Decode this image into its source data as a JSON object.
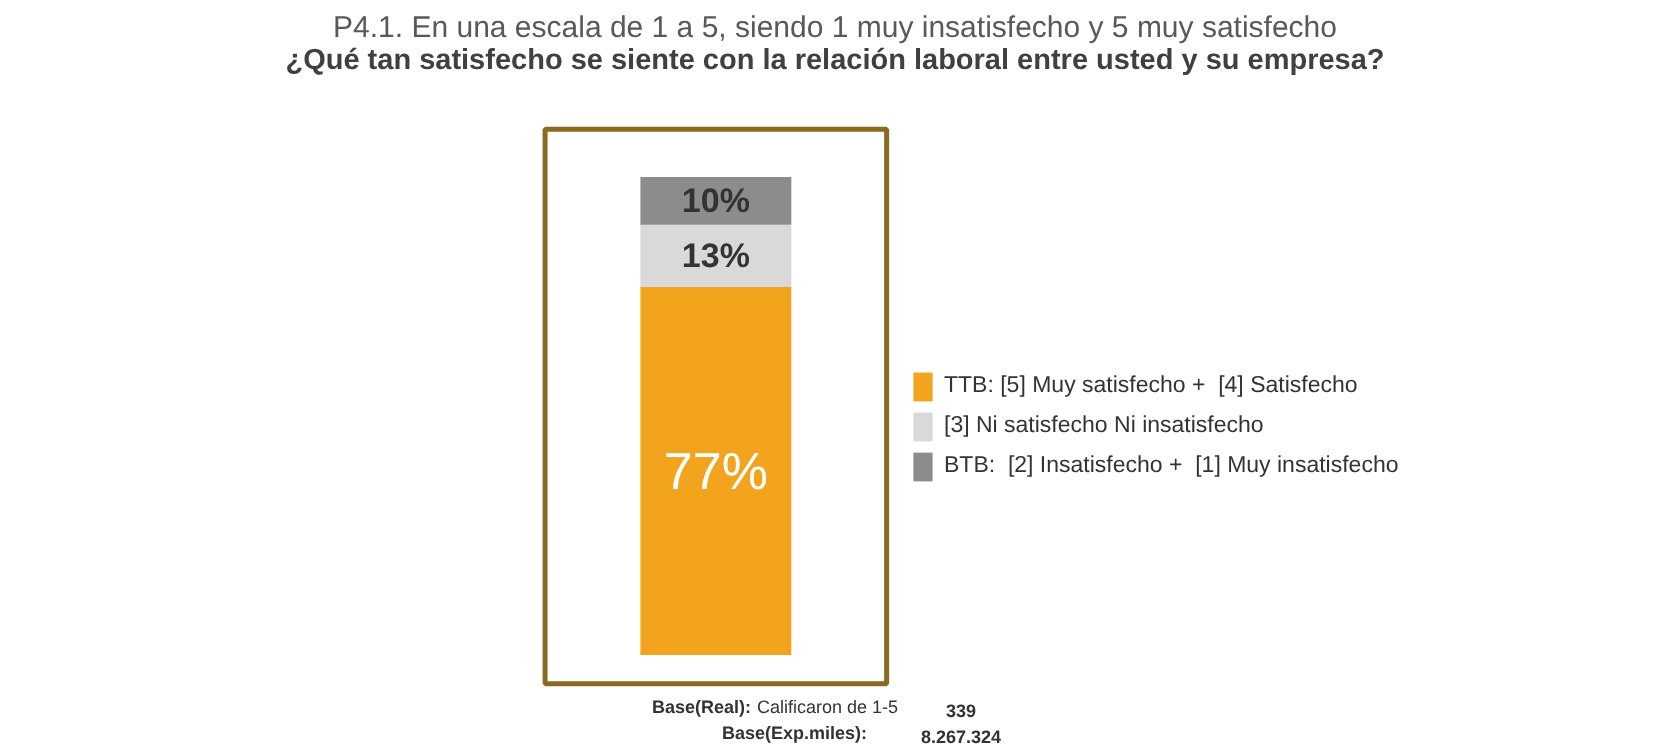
{
  "chart_data": {
    "type": "bar",
    "stacked": true,
    "title": "P4.1. En una escala de 1 a 5, siendo 1 muy insatisfecho y 5 muy satisfecho",
    "subtitle": "¿Qué tan satisfecho se siente con la relación laboral entre usted y su empresa?",
    "categories": [
      null
    ],
    "series": [
      {
        "name": "TTB: [5] Muy satisfecho +  [4] Satisfecho",
        "color": "#f2a41c",
        "values": [
          77
        ],
        "value_labels": [
          "77%"
        ]
      },
      {
        "name": "[3] Ni satisfecho Ni insatisfecho",
        "color": "#d9d9d9",
        "values": [
          13
        ],
        "value_labels": [
          "13%"
        ]
      },
      {
        "name": "BTB:  [2] Insatisfecho +  [1] Muy insatisfecho",
        "color": "#8c8c8c",
        "values": [
          10
        ],
        "value_labels": [
          "10%"
        ]
      }
    ],
    "legend": "right",
    "grid": false,
    "annotations": [
      "Base(Real):",
      "Calificaron de 1-5",
      "339",
      "Base(Exp.miles):",
      "8.267.324"
    ]
  }
}
